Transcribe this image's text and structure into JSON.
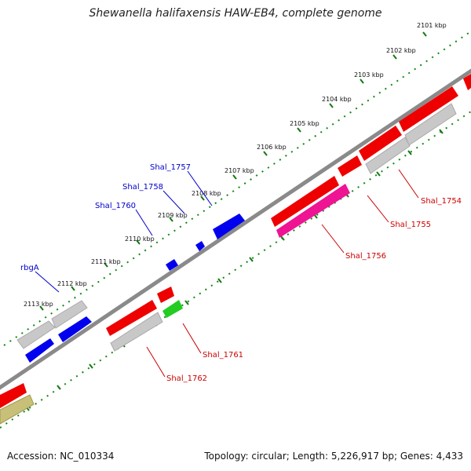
{
  "title": "Shewanella halifaxensis HAW-EB4, complete genome",
  "footer": {
    "accession": "Accession: NC_010334",
    "summary": "Topology: circular; Length: 5,226,917 bp; Genes: 4,433"
  },
  "scale_labels": [
    "2101 kbp",
    "2102 kbp",
    "2103 kbp",
    "2104 kbp",
    "2105 kbp",
    "2106 kbp",
    "2107 kbp",
    "2108 kbp",
    "2109 kbp",
    "2110 kbp",
    "2111 kbp",
    "2112 kbp",
    "2113 kbp"
  ],
  "gene_labels": {
    "forward": [
      "Shal_1757",
      "Shal_1758",
      "Shal_1760",
      "rbgA"
    ],
    "reverse": [
      "Shal_1754",
      "Shal_1755",
      "Shal_1756",
      "Shal_1761",
      "Shal_1762"
    ]
  },
  "colors": {
    "forward_label": "#0000cc",
    "reverse_label": "#cc0000",
    "cds_red": "#ee0000",
    "cds_blue": "#0000ee",
    "cds_grey": "#c8c8c8",
    "cds_pink": "#ee1493",
    "cds_green": "#22cc22",
    "cds_olive": "#c8c078",
    "backbone": "#888888",
    "scale_tick": "#118811"
  }
}
